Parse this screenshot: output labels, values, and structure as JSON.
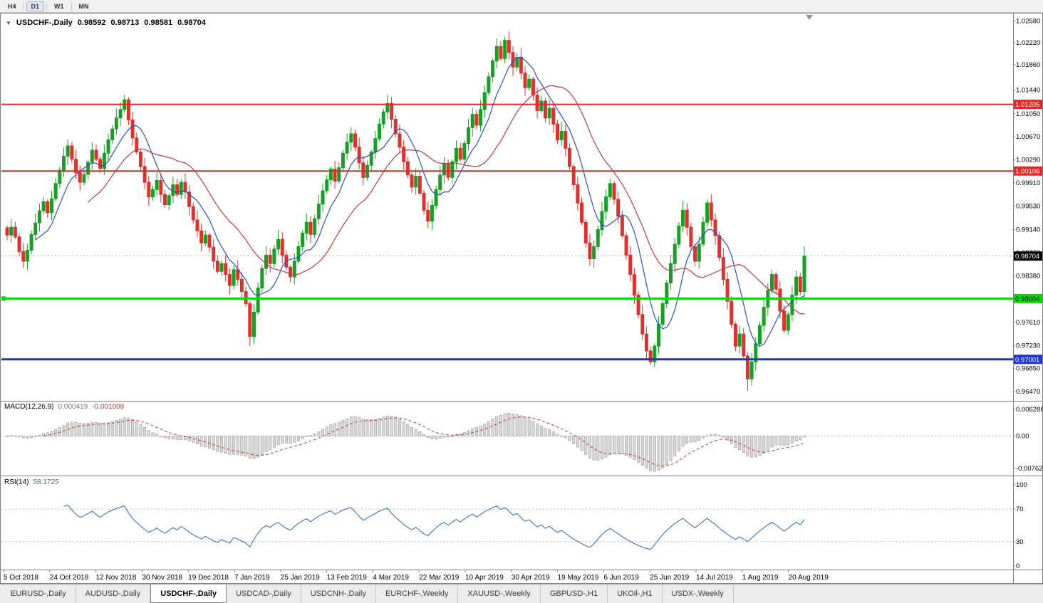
{
  "toolbar": {
    "periods": [
      {
        "label": "H4",
        "active": false
      },
      {
        "label": "D1",
        "active": true
      },
      {
        "label": "W1",
        "active": false
      },
      {
        "label": "MN",
        "active": false
      }
    ]
  },
  "chart": {
    "collapse_icon": "▼",
    "title": "USDCHF-,Daily",
    "ohlc": {
      "open": "0.98592",
      "high": "0.98713",
      "low": "0.98581",
      "close": "0.98704"
    }
  },
  "colors": {
    "up_candle": "#16a025",
    "down_candle": "#e0312e",
    "ma_fast": "#2a4fc0",
    "ma_slow": "#c23b3b",
    "macd_hist_fill": "#d8d8d8",
    "macd_hist_stroke": "#9c9c9c",
    "macd_signal": "#c23b3b",
    "rsi_line": "#4a7ebb",
    "rsi_levels": "#b6b6d8",
    "current_price_badge": "#000000"
  },
  "chart_data": {
    "type": "candlestick",
    "symbol": "USDCHF",
    "timeframe": "Daily",
    "closes": [
      0.9905,
      0.9918,
      0.9902,
      0.9878,
      0.9862,
      0.988,
      0.9906,
      0.9925,
      0.9945,
      0.996,
      0.9942,
      0.9965,
      0.999,
      1.0012,
      1.0035,
      1.0052,
      1.003,
      1.0008,
      0.9992,
      1.0005,
      1.0025,
      1.0045,
      1.003,
      1.0015,
      1.004,
      1.0062,
      1.008,
      1.0098,
      1.0112,
      1.0128,
      1.0095,
      1.0065,
      1.0042,
      1.0018,
      0.9992,
      0.9968,
      0.998,
      0.9995,
      0.9972,
      0.9955,
      0.997,
      0.9988,
      0.9972,
      0.9992,
      0.9976,
      0.9952,
      0.993,
      0.9912,
      0.9892,
      0.9905,
      0.9885,
      0.9862,
      0.9845,
      0.9858,
      0.984,
      0.9822,
      0.9848,
      0.9832,
      0.9812,
      0.9792,
      0.9738,
      0.9778,
      0.9818,
      0.985,
      0.9872,
      0.9858,
      0.9882,
      0.9898,
      0.9872,
      0.9852,
      0.9836,
      0.9862,
      0.9886,
      0.9908,
      0.9926,
      0.9906,
      0.9932,
      0.9956,
      0.9978,
      0.9996,
      1.0014,
      0.9994,
      1.0016,
      1.004,
      1.0058,
      1.0072,
      1.005,
      1.0024,
      1.0,
      1.002,
      1.0042,
      1.0064,
      1.0088,
      1.0108,
      1.0122,
      1.0096,
      1.0072,
      1.005,
      1.0026,
      1.0004,
      0.9984,
      1.0002,
      0.9974,
      0.9946,
      0.9928,
      0.9954,
      0.998,
      1.0004,
      1.0022,
      1.0,
      1.0026,
      1.0048,
      1.003,
      1.0056,
      1.0082,
      1.0104,
      1.0086,
      1.0112,
      1.014,
      1.0166,
      1.0192,
      1.0216,
      1.0196,
      1.0226,
      1.0206,
      1.0182,
      1.0198,
      1.0172,
      1.0148,
      1.0162,
      1.0136,
      1.011,
      1.0126,
      1.0098,
      1.0114,
      1.0088,
      1.0062,
      1.0076,
      1.0048,
      1.0018,
      0.9988,
      0.9958,
      0.9926,
      0.9892,
      0.9866,
      0.9886,
      0.9914,
      0.9944,
      0.9968,
      0.999,
      0.9964,
      0.9936,
      0.9904,
      0.9872,
      0.984,
      0.9806,
      0.9774,
      0.9742,
      0.9714,
      0.9696,
      0.9722,
      0.9758,
      0.9792,
      0.9826,
      0.9858,
      0.989,
      0.992,
      0.9946,
      0.9918,
      0.9886,
      0.9862,
      0.989,
      0.9926,
      0.9958,
      0.993,
      0.9904,
      0.9868,
      0.9832,
      0.9796,
      0.9758,
      0.9722,
      0.9742,
      0.9706,
      0.9668,
      0.9696,
      0.9726,
      0.9756,
      0.9786,
      0.9814,
      0.984,
      0.9816,
      0.978,
      0.9748,
      0.9774,
      0.9806,
      0.9836,
      0.9812,
      0.98704
    ],
    "spike_highs": {
      "123": 1.0232
    },
    "spike_lows": {
      "60": 0.9722,
      "159": 0.9692,
      "183": 0.9648
    },
    "y_axis": {
      "min": 0.964,
      "max": 1.0262,
      "ticks": [
        "1.02580",
        "1.02220",
        "1.01860",
        "1.01440",
        "1.01050",
        "1.00670",
        "1.00290",
        "0.99910",
        "0.99530",
        "0.99140",
        "0.98760",
        "0.98380",
        "0.97610",
        "0.97230",
        "0.96850",
        "0.96470"
      ]
    },
    "h_lines": [
      {
        "name": "resistance-line-1",
        "label": "1.01205",
        "value": 1.01205,
        "color": "#e02a2a",
        "width": 2,
        "text_color": "#ffffff",
        "anchor": false
      },
      {
        "name": "resistance-line-2",
        "label": "1.00106",
        "value": 1.00106,
        "color": "#e02a2a",
        "width": 2,
        "text_color": "#ffffff",
        "anchor": false
      },
      {
        "name": "support-line-green",
        "label": "0.98004",
        "value": 0.98004,
        "color": "#00db00",
        "width": 3,
        "text_color": "#000000",
        "anchor": true
      },
      {
        "name": "support-line-blue",
        "label": "0.97001",
        "value": 0.97001,
        "color": "#1f35d0",
        "width": 3,
        "text_color": "#ffffff",
        "anchor": false
      }
    ],
    "current_price": {
      "value": 0.98704,
      "label": "0.98704"
    },
    "x_axis": {
      "dates": [
        "5 Oct 2018",
        "24 Oct 2018",
        "12 Nov 2018",
        "30 Nov 2018",
        "19 Dec 2018",
        "7 Jan 2019",
        "25 Jan 2019",
        "13 Feb 2019",
        "4 Mar 2019",
        "22 Mar 2019",
        "10 Apr 2019",
        "30 Apr 2019",
        "19 May 2019",
        "6 Jun 2019",
        "25 Jun 2019",
        "14 Jul 2019",
        "1 Aug 2019",
        "20 Aug 2019"
      ]
    },
    "macd": {
      "label": "MACD(12,26,9)",
      "value_main": "0.000419",
      "value_signal": "-0.001008",
      "params": [
        12,
        26,
        9
      ],
      "axis": [
        "0.006286",
        "0.00",
        "-0.007620"
      ]
    },
    "rsi": {
      "label": "RSI(14)",
      "value": "58.1725",
      "period": 14,
      "levels": [
        70,
        30
      ],
      "axis": [
        "100",
        "70",
        "30",
        "0"
      ]
    }
  },
  "tabs": [
    {
      "label": "EURUSD-,Daily",
      "active": false
    },
    {
      "label": "AUDUSD-,Daily",
      "active": false
    },
    {
      "label": "USDCHF-,Daily",
      "active": true
    },
    {
      "label": "USDCAD-,Daily",
      "active": false
    },
    {
      "label": "USDCNH-,Daily",
      "active": false
    },
    {
      "label": "EURCHF-,Weekly",
      "active": false
    },
    {
      "label": "XAUUSD-,Weekly",
      "active": false
    },
    {
      "label": "GBPUSD-,H1",
      "active": false
    },
    {
      "label": "UKOil-,H1",
      "active": false
    },
    {
      "label": "USDX-,Weekly",
      "active": false
    }
  ]
}
